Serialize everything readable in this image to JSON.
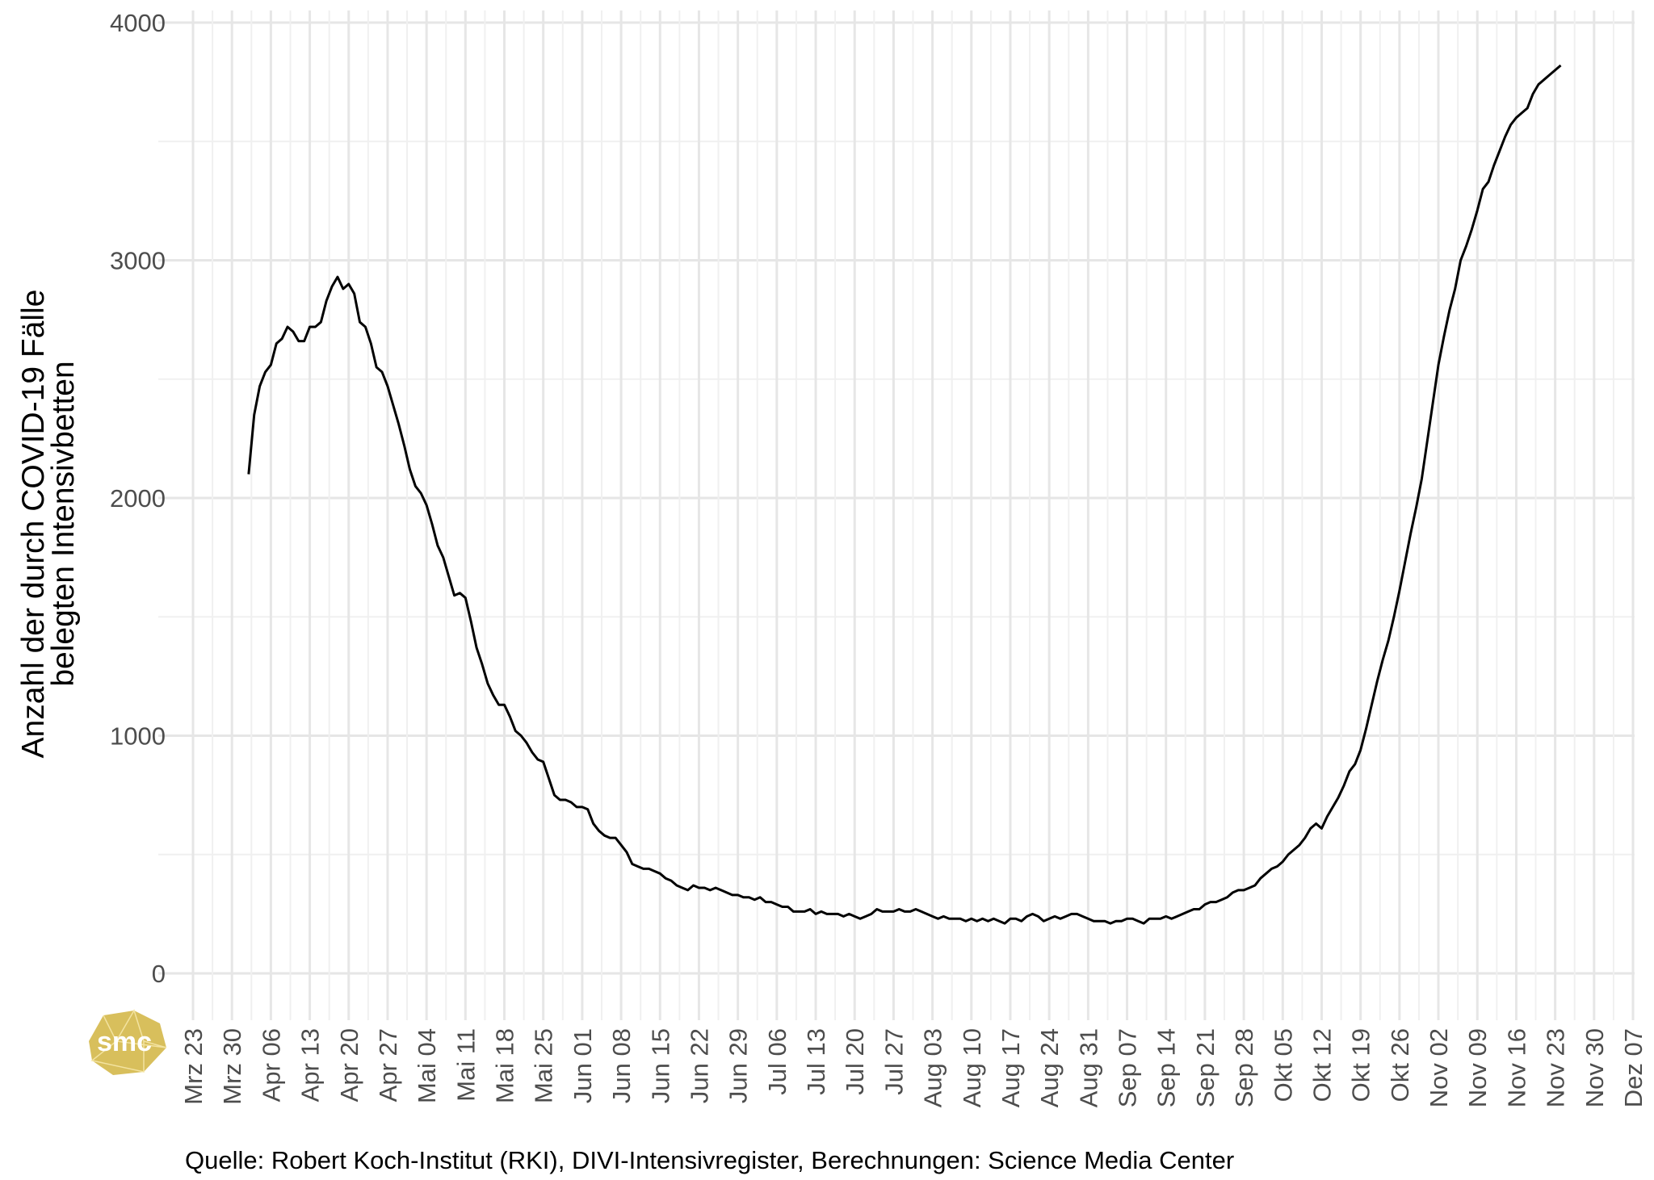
{
  "chart_data": {
    "type": "line",
    "y_label": "Anzahl der durch COVID-19 Fälle\nbelegten Intensivbetten",
    "source": "Quelle: Robert Koch-Institut (RKI), DIVI-Intensivregister, Berechnungen: Science Media Center",
    "logo": "smc",
    "grid": true,
    "ylim": [
      0,
      4000
    ],
    "yticks": [
      0,
      1000,
      2000,
      3000,
      4000
    ],
    "categories": [
      "Mrz 23",
      null,
      null,
      null,
      null,
      null,
      null,
      "Mrz 30",
      null,
      null,
      null,
      null,
      null,
      null,
      "Apr 06",
      null,
      null,
      null,
      null,
      null,
      null,
      "Apr 13",
      null,
      null,
      null,
      null,
      null,
      null,
      "Apr 20",
      null,
      null,
      null,
      null,
      null,
      null,
      "Apr 27",
      null,
      null,
      null,
      null,
      null,
      null,
      "Mai 04",
      null,
      null,
      null,
      null,
      null,
      null,
      "Mai 11",
      null,
      null,
      null,
      null,
      null,
      null,
      "Mai 18",
      null,
      null,
      null,
      null,
      null,
      null,
      "Mai 25",
      null,
      null,
      null,
      null,
      null,
      null,
      "Jun 01",
      null,
      null,
      null,
      null,
      null,
      null,
      "Jun 08",
      null,
      null,
      null,
      null,
      null,
      null,
      "Jun 15",
      null,
      null,
      null,
      null,
      null,
      null,
      "Jun 22",
      null,
      null,
      null,
      null,
      null,
      null,
      "Jun 29",
      null,
      null,
      null,
      null,
      null,
      null,
      "Jul 06",
      null,
      null,
      null,
      null,
      null,
      null,
      "Jul 13",
      null,
      null,
      null,
      null,
      null,
      null,
      "Jul 20",
      null,
      null,
      null,
      null,
      null,
      null,
      "Jul 27",
      null,
      null,
      null,
      null,
      null,
      null,
      "Aug 03",
      null,
      null,
      null,
      null,
      null,
      null,
      "Aug 10",
      null,
      null,
      null,
      null,
      null,
      null,
      "Aug 17",
      null,
      null,
      null,
      null,
      null,
      null,
      "Aug 24",
      null,
      null,
      null,
      null,
      null,
      null,
      "Aug 31",
      null,
      null,
      null,
      null,
      null,
      null,
      "Sep 07",
      null,
      null,
      null,
      null,
      null,
      null,
      "Sep 14",
      null,
      null,
      null,
      null,
      null,
      null,
      "Sep 21",
      null,
      null,
      null,
      null,
      null,
      null,
      "Sep 28",
      null,
      null,
      null,
      null,
      null,
      null,
      "Okt 05",
      null,
      null,
      null,
      null,
      null,
      null,
      "Okt 12",
      null,
      null,
      null,
      null,
      null,
      null,
      "Okt 19",
      null,
      null,
      null,
      null,
      null,
      null,
      "Okt 26",
      null,
      null,
      null,
      null,
      null,
      null,
      "Nov 02",
      null,
      null,
      null,
      null,
      null,
      null,
      "Nov 09",
      null,
      null,
      null,
      null,
      null,
      null,
      "Nov 16",
      null,
      null,
      null,
      null,
      null,
      null,
      "Nov 23",
      null,
      null,
      null,
      null,
      null,
      null,
      "Nov 30",
      null,
      null,
      null,
      null,
      null,
      null,
      "Dez 07"
    ],
    "series": [
      {
        "color": "#000000",
        "values": [
          null,
          null,
          null,
          null,
          null,
          null,
          null,
          null,
          null,
          null,
          2100,
          2350,
          2470,
          2530,
          2560,
          2650,
          2670,
          2720,
          2700,
          2660,
          2660,
          2720,
          2720,
          2740,
          2830,
          2890,
          2930,
          2880,
          2900,
          2860,
          2740,
          2720,
          2650,
          2550,
          2530,
          2470,
          2390,
          2310,
          2220,
          2120,
          2050,
          2020,
          1970,
          1890,
          1800,
          1750,
          1670,
          1590,
          1600,
          1580,
          1480,
          1370,
          1300,
          1220,
          1170,
          1130,
          1130,
          1080,
          1020,
          1000,
          970,
          930,
          900,
          890,
          820,
          750,
          730,
          730,
          720,
          700,
          700,
          690,
          630,
          600,
          580,
          570,
          570,
          540,
          510,
          460,
          450,
          440,
          440,
          430,
          420,
          400,
          390,
          370,
          360,
          350,
          370,
          360,
          360,
          350,
          360,
          350,
          340,
          330,
          330,
          320,
          320,
          310,
          320,
          300,
          300,
          290,
          280,
          280,
          260,
          260,
          260,
          270,
          250,
          260,
          250,
          250,
          250,
          240,
          250,
          240,
          230,
          240,
          250,
          270,
          260,
          260,
          260,
          270,
          260,
          260,
          270,
          260,
          250,
          240,
          230,
          240,
          230,
          230,
          230,
          220,
          230,
          220,
          230,
          220,
          230,
          220,
          210,
          230,
          230,
          220,
          240,
          250,
          240,
          220,
          230,
          240,
          230,
          240,
          250,
          250,
          240,
          230,
          220,
          220,
          220,
          210,
          220,
          220,
          230,
          230,
          220,
          210,
          230,
          230,
          230,
          240,
          230,
          240,
          250,
          260,
          270,
          270,
          290,
          300,
          300,
          310,
          320,
          340,
          350,
          350,
          360,
          370,
          400,
          420,
          440,
          450,
          470,
          500,
          520,
          540,
          570,
          610,
          630,
          610,
          660,
          700,
          740,
          790,
          850,
          880,
          940,
          1030,
          1130,
          1230,
          1320,
          1400,
          1500,
          1610,
          1730,
          1850,
          1960,
          2080,
          2240,
          2400,
          2560,
          2680,
          2790,
          2880,
          3000,
          3060,
          3130,
          3210,
          3300,
          3330,
          3400,
          3460,
          3520,
          3570,
          3600,
          3620,
          3640,
          3700,
          3740,
          3760,
          3780,
          3800,
          3820,
          null,
          null,
          null,
          null,
          null,
          null,
          null,
          null,
          null,
          null,
          null,
          null,
          null
        ]
      }
    ]
  }
}
